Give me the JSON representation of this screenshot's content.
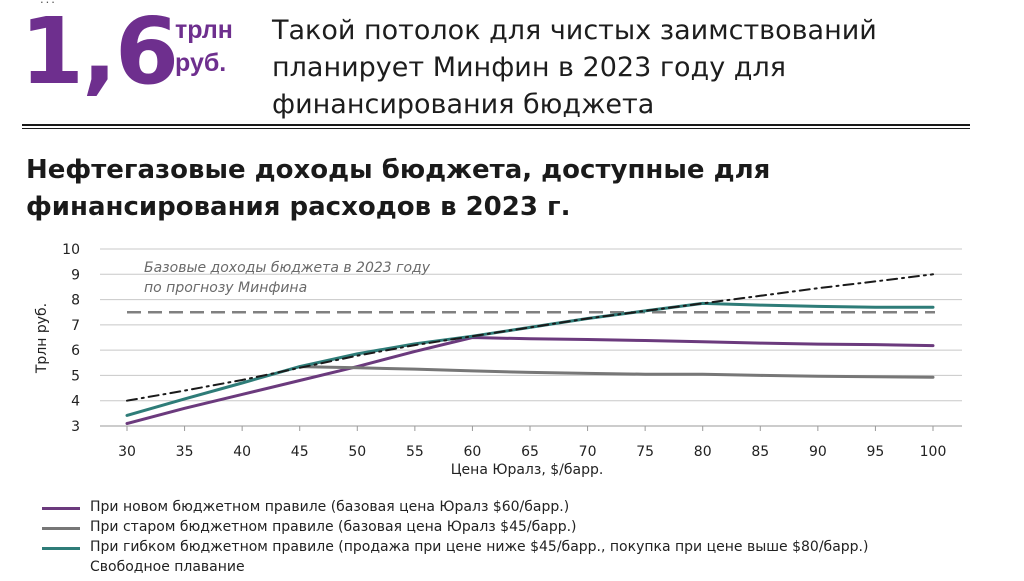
{
  "header": {
    "top_fragment": "...",
    "big_number": "1,6",
    "unit_line1": "трлн",
    "unit_line2": "руб.",
    "caption": "Такой потолок для чистых заимствований планирует Минфин в 2023 году для финансирования бюджета"
  },
  "colors": {
    "accent": "#6e2f8e",
    "new_rule": "#6b3a7d",
    "old_rule": "#777777",
    "flexible_rule": "#2e7c78",
    "free_float": "#1a1a1a",
    "baseline": "#808080"
  },
  "chart_data": {
    "type": "line",
    "title": "Нефтегазовые доходы бюджета, доступные для финансирования расходов в 2023 г.",
    "xlabel": "Цена Юралз, $/барр.",
    "ylabel": "Трлн руб.",
    "ylim": [
      3,
      10
    ],
    "xlim": [
      30,
      100
    ],
    "x": [
      30,
      35,
      40,
      45,
      50,
      55,
      60,
      65,
      70,
      75,
      80,
      85,
      90,
      95,
      100
    ],
    "yticks": [
      3,
      4,
      5,
      6,
      7,
      8,
      9,
      10
    ],
    "grid": "horizontal",
    "legend_position": "bottom",
    "series": [
      {
        "name": "При новом бюджетном правиле (базовая цена Юралз $60/барр.)",
        "values": [
          3.1,
          3.7,
          4.25,
          4.8,
          5.35,
          5.95,
          6.5,
          6.45,
          6.42,
          6.38,
          6.33,
          6.28,
          6.24,
          6.22,
          6.18
        ]
      },
      {
        "name": "При старом бюджетном правиле (базовая цена Юралз $45/барр.)",
        "values": [
          null,
          null,
          null,
          5.35,
          5.3,
          5.25,
          5.18,
          5.12,
          5.08,
          5.05,
          5.05,
          5.0,
          4.97,
          4.95,
          4.93
        ]
      },
      {
        "name": "При гибком бюджетном правиле (продажа при цене ниже $45/барр., покупка при цене выше $80/барр.)",
        "values": [
          3.42,
          4.07,
          4.7,
          5.35,
          5.85,
          6.25,
          6.55,
          6.9,
          7.25,
          7.55,
          7.85,
          7.78,
          7.73,
          7.7,
          7.7
        ]
      },
      {
        "name": "Свободное плавание",
        "values": [
          4.0,
          4.4,
          4.82,
          5.3,
          5.78,
          6.2,
          6.55,
          6.9,
          7.25,
          7.55,
          7.85,
          8.15,
          8.45,
          8.72,
          9.0
        ]
      }
    ],
    "baseline": {
      "value": 7.5,
      "label_line1": "Базовые  доходы бюджета  в 2023 году",
      "label_line2": "по прогнозу Минфина"
    }
  }
}
